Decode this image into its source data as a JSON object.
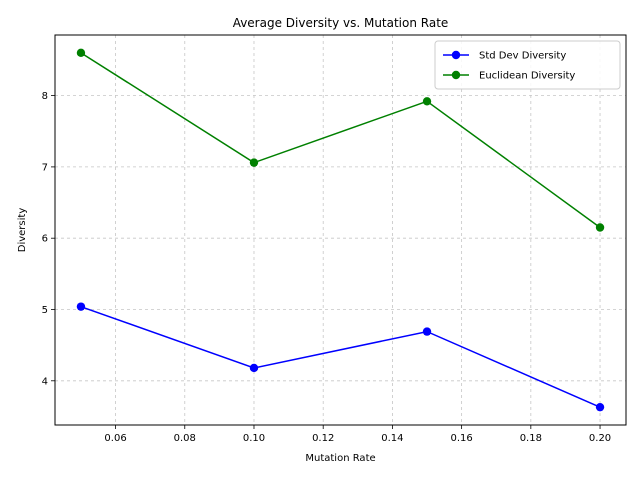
{
  "chart_data": {
    "type": "line",
    "title": "Average Diversity vs. Mutation Rate",
    "xlabel": "Mutation Rate",
    "ylabel": "Diversity",
    "x": [
      0.05,
      0.1,
      0.15,
      0.2
    ],
    "xlim": [
      0.0425,
      0.2075
    ],
    "ylim": [
      3.38,
      8.85
    ],
    "xticks": [
      0.06,
      0.08,
      0.1,
      0.12,
      0.14,
      0.16,
      0.18,
      0.2
    ],
    "xtick_labels": [
      "0.06",
      "0.08",
      "0.10",
      "0.12",
      "0.14",
      "0.16",
      "0.18",
      "0.20"
    ],
    "yticks": [
      4,
      5,
      6,
      7,
      8
    ],
    "ytick_labels": [
      "4",
      "5",
      "6",
      "7",
      "8"
    ],
    "grid": true,
    "legend_position": "top-right",
    "series": [
      {
        "name": "Std Dev Diversity",
        "color": "#0000ff",
        "values": [
          5.04,
          4.18,
          4.69,
          3.63
        ]
      },
      {
        "name": "Euclidean Diversity",
        "color": "#008000",
        "values": [
          8.6,
          7.06,
          7.92,
          6.15
        ]
      }
    ]
  }
}
